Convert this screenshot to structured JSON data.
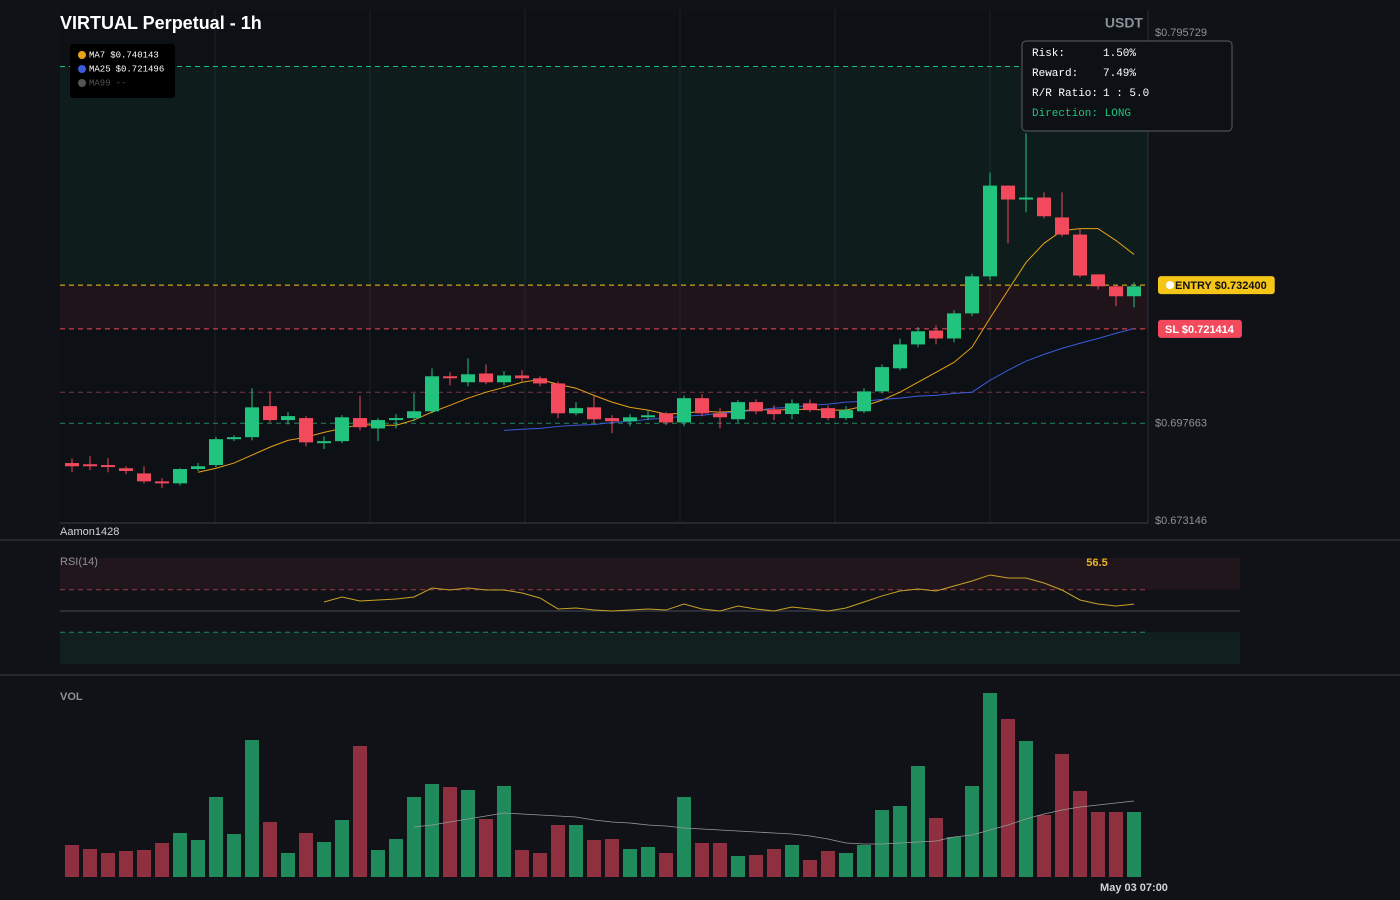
{
  "chart_data": [
    {
      "type": "candlestick",
      "title": "VIRTUAL Perpetual - 1h",
      "unit": "USDT",
      "watermark": "Aamon1428",
      "colors": {
        "up": "#22c27f",
        "down": "#f2495c"
      },
      "open": [
        0.6877,
        0.6874,
        0.6872,
        0.6864,
        0.6851,
        0.6831,
        0.6826,
        0.6862,
        0.6872,
        0.6937,
        0.6942,
        0.702,
        0.6985,
        0.699,
        0.6927,
        0.6932,
        0.699,
        0.6964,
        0.6985,
        0.699,
        0.7007,
        0.7095,
        0.708,
        0.7102,
        0.708,
        0.7097,
        0.709,
        0.7077,
        0.7002,
        0.7017,
        0.699,
        0.6982,
        0.6992,
        0.7002,
        0.6979,
        0.704,
        0.7002,
        0.6987,
        0.703,
        0.7012,
        0.7,
        0.7027,
        0.7015,
        0.699,
        0.7007,
        0.7057,
        0.7115,
        0.7175,
        0.721,
        0.719,
        0.7253,
        0.7346,
        0.7574,
        0.7539,
        0.7544,
        0.7494,
        0.7451,
        0.7351,
        0.7321,
        0.7296
      ],
      "high": [
        0.6889,
        0.6894,
        0.6889,
        0.6869,
        0.6869,
        0.6839,
        0.6864,
        0.6877,
        0.6942,
        0.6947,
        0.7065,
        0.7057,
        0.7005,
        0.6995,
        0.6944,
        0.6997,
        0.7045,
        0.699,
        0.7,
        0.7052,
        0.7115,
        0.7105,
        0.714,
        0.7125,
        0.7108,
        0.711,
        0.7095,
        0.7082,
        0.703,
        0.7045,
        0.6997,
        0.7,
        0.701,
        0.7005,
        0.7047,
        0.705,
        0.7015,
        0.7035,
        0.7037,
        0.7022,
        0.7037,
        0.7037,
        0.7022,
        0.702,
        0.7065,
        0.7125,
        0.719,
        0.7218,
        0.7223,
        0.7261,
        0.7353,
        0.7607,
        0.7574,
        0.7705,
        0.7557,
        0.7557,
        0.7466,
        0.7351,
        0.7326,
        0.7331
      ],
      "low": [
        0.6854,
        0.6859,
        0.6854,
        0.6849,
        0.6826,
        0.6814,
        0.6821,
        0.6857,
        0.6867,
        0.6932,
        0.6934,
        0.6979,
        0.6974,
        0.6919,
        0.6912,
        0.6927,
        0.6959,
        0.6932,
        0.6964,
        0.6982,
        0.7002,
        0.7072,
        0.707,
        0.7075,
        0.7072,
        0.7082,
        0.707,
        0.699,
        0.6997,
        0.6977,
        0.6952,
        0.6969,
        0.6985,
        0.6972,
        0.6969,
        0.6995,
        0.6964,
        0.6979,
        0.7,
        0.6985,
        0.6987,
        0.7005,
        0.6985,
        0.6985,
        0.7002,
        0.7052,
        0.711,
        0.7168,
        0.7175,
        0.718,
        0.7246,
        0.7336,
        0.7429,
        0.7507,
        0.7492,
        0.7446,
        0.7343,
        0.7313,
        0.7271,
        0.7268
      ],
      "close": [
        0.6869,
        0.6869,
        0.6867,
        0.6857,
        0.6831,
        0.6826,
        0.6862,
        0.6869,
        0.6937,
        0.6942,
        0.7017,
        0.6985,
        0.6995,
        0.6929,
        0.6932,
        0.6992,
        0.6967,
        0.6985,
        0.699,
        0.7007,
        0.7095,
        0.709,
        0.71,
        0.708,
        0.7097,
        0.709,
        0.7077,
        0.7002,
        0.7015,
        0.6987,
        0.6982,
        0.6992,
        0.6997,
        0.6979,
        0.704,
        0.7002,
        0.6992,
        0.703,
        0.7007,
        0.7,
        0.7027,
        0.701,
        0.699,
        0.701,
        0.7057,
        0.7118,
        0.7175,
        0.7208,
        0.719,
        0.7253,
        0.7346,
        0.7574,
        0.7539,
        0.7544,
        0.7497,
        0.7451,
        0.7348,
        0.7321,
        0.7296,
        0.7321
      ],
      "series": [
        {
          "name": "MA7",
          "color": "#e8a317",
          "last_label": "$0.740143",
          "values": [
            null,
            null,
            null,
            null,
            null,
            null,
            null,
            0.6854,
            0.6864,
            0.6877,
            0.6897,
            0.6917,
            0.6934,
            0.6942,
            0.6954,
            0.6964,
            0.6974,
            0.6972,
            0.6972,
            0.6985,
            0.7005,
            0.7022,
            0.704,
            0.7055,
            0.7067,
            0.708,
            0.7087,
            0.7075,
            0.7065,
            0.7047,
            0.703,
            0.7017,
            0.701,
            0.7,
            0.7002,
            0.7007,
            0.7005,
            0.7007,
            0.7012,
            0.701,
            0.7012,
            0.7012,
            0.701,
            0.701,
            0.702,
            0.7035,
            0.7055,
            0.708,
            0.7105,
            0.713,
            0.7168,
            0.7241,
            0.7311,
            0.7381,
            0.7429,
            0.7461,
            0.7466,
            0.7466,
            0.7436,
            0.7401
          ]
        },
        {
          "name": "MA25",
          "color": "#3b5bdb",
          "last_label": "$0.721496",
          "values": [
            null,
            null,
            null,
            null,
            null,
            null,
            null,
            null,
            null,
            null,
            null,
            null,
            null,
            null,
            null,
            null,
            null,
            null,
            null,
            null,
            null,
            null,
            null,
            null,
            0.6959,
            0.6962,
            0.6964,
            0.6969,
            0.6972,
            0.6974,
            0.6979,
            0.6982,
            0.6987,
            0.699,
            0.6995,
            0.6997,
            0.7002,
            0.7005,
            0.701,
            0.7015,
            0.7017,
            0.7022,
            0.7025,
            0.703,
            0.7032,
            0.7037,
            0.704,
            0.7045,
            0.7047,
            0.7052,
            0.7055,
            0.7085,
            0.711,
            0.7133,
            0.715,
            0.7165,
            0.7178,
            0.719,
            0.7203,
            0.7215
          ]
        },
        {
          "name": "MA99",
          "color": "#555555",
          "last_label": "--"
        }
      ],
      "levels": [
        {
          "value": 0.7873,
          "color": "#22c27f"
        },
        {
          "value": 0.7324,
          "color": "#f5c518",
          "label": "ENTRY $0.732400",
          "text_color": "#111111",
          "badge_dot": true
        },
        {
          "value": 0.721414,
          "color": "#f2495c",
          "label": "SL $0.721414",
          "text_color": "#ffffff"
        },
        {
          "value": 0.7055,
          "color": "#7a3340"
        },
        {
          "value": 0.6977,
          "color": "#1f8a5c"
        }
      ],
      "ylim": [
        0.673146,
        0.795729
      ],
      "yticks": [
        {
          "value": 0.795729,
          "label": "$0.795729"
        },
        {
          "value": 0.697663,
          "label": "$0.697663"
        },
        {
          "value": 0.673146,
          "label": "$0.673146"
        }
      ],
      "info_box": [
        {
          "label": "Risk:",
          "value": "1.50%"
        },
        {
          "label": "Reward:",
          "value": "7.49%"
        },
        {
          "label": "R/R Ratio:",
          "value": "1 : 5.0"
        },
        {
          "label": "Direction: LONG",
          "color": "#22c27f"
        }
      ]
    },
    {
      "type": "line",
      "title": "RSI(14)",
      "color": "#c9a227",
      "ylim": [
        0,
        100
      ],
      "bands": [
        {
          "from": 70,
          "to": 100,
          "color": "#f2495c"
        },
        {
          "from": 0,
          "to": 30,
          "color": "#22c27f"
        }
      ],
      "levels": [
        {
          "value": 70,
          "color": "#9a3d4a",
          "dash": true
        },
        {
          "value": 50,
          "color": "#444a55"
        },
        {
          "value": 30,
          "color": "#1f8a5c",
          "dash": true
        }
      ],
      "series": [
        {
          "values": [
            null,
            null,
            null,
            null,
            null,
            null,
            null,
            null,
            null,
            null,
            null,
            null,
            null,
            null,
            58.5,
            63.2,
            59.4,
            60.4,
            61.3,
            63.2,
            71.7,
            69.8,
            71.7,
            69.8,
            69.8,
            67.0,
            62.3,
            51.9,
            52.8,
            50.9,
            50.0,
            50.9,
            51.9,
            50.9,
            56.6,
            51.9,
            50.0,
            54.7,
            51.9,
            50.0,
            53.8,
            51.9,
            50.0,
            52.8,
            58.5,
            64.2,
            68.9,
            70.8,
            68.9,
            73.6,
            78.3,
            84.0,
            81.1,
            81.1,
            76.4,
            69.8,
            60.4,
            56.6,
            54.7,
            56.5
          ]
        }
      ]
    },
    {
      "type": "bar",
      "title": "VOL",
      "ylim": [
        0,
        190
      ],
      "colors": {
        "up": "#1f8a5c",
        "down": "#8e3040"
      },
      "categories": [
        null,
        null,
        null,
        null,
        null,
        null,
        null,
        null,
        null,
        null,
        null,
        null,
        null,
        null,
        null,
        null,
        null,
        null,
        null,
        null,
        null,
        null,
        null,
        null,
        null,
        null,
        null,
        null,
        null,
        null,
        null,
        null,
        null,
        null,
        null,
        null,
        null,
        null,
        null,
        null,
        null,
        null,
        null,
        null,
        null,
        null,
        null,
        null,
        null,
        null,
        null,
        null,
        null,
        null,
        null,
        null,
        null,
        null,
        null,
        "May 03 07:00"
      ],
      "values": [
        32,
        28,
        24,
        26,
        27,
        34,
        44,
        37,
        80,
        43,
        137,
        55,
        24,
        44,
        35,
        57,
        131,
        27,
        38,
        80,
        93,
        90,
        87,
        58,
        91,
        27,
        24,
        52,
        52,
        37,
        38,
        28,
        30,
        24,
        80,
        34,
        34,
        21,
        22,
        28,
        32,
        17,
        26,
        24,
        32,
        67,
        71,
        111,
        59,
        40,
        91,
        184,
        158,
        136,
        62,
        123,
        86,
        65,
        65,
        65
      ],
      "ma_color": "#9a9a9a",
      "ma": [
        null,
        null,
        null,
        null,
        null,
        null,
        null,
        null,
        null,
        null,
        null,
        null,
        null,
        null,
        null,
        null,
        null,
        null,
        null,
        50,
        52,
        55,
        58,
        61,
        64,
        63,
        62,
        61,
        60,
        57,
        55,
        54,
        52,
        51,
        49,
        48,
        47,
        46,
        45,
        44,
        43,
        41,
        38,
        34,
        33,
        33,
        34,
        35,
        36,
        40,
        42,
        47,
        52,
        58,
        63,
        67,
        70,
        72,
        74,
        76
      ]
    }
  ]
}
